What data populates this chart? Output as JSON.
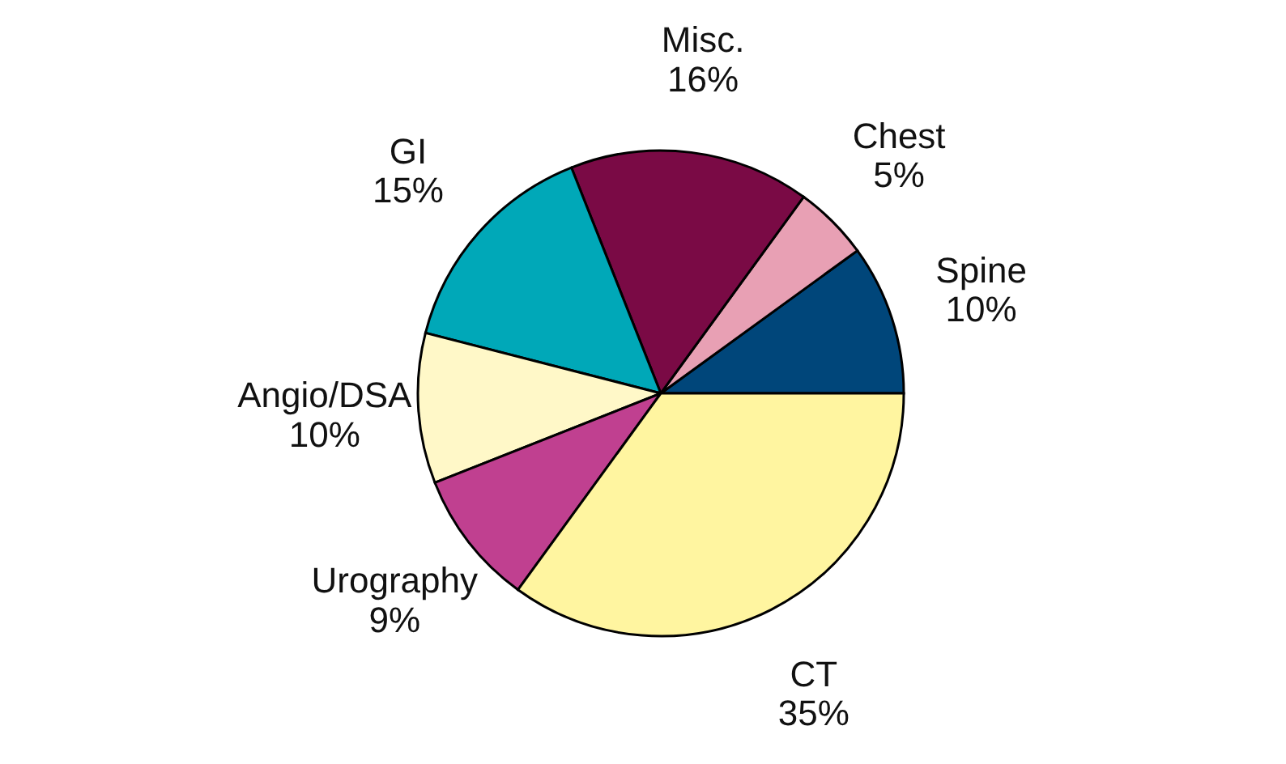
{
  "chart_data": {
    "type": "pie",
    "categories": [
      "Spine",
      "Chest",
      "Misc.",
      "GI",
      "Angio/DSA",
      "Urography",
      "CT"
    ],
    "values": [
      10,
      5,
      16,
      15,
      10,
      9,
      35
    ],
    "value_labels": [
      "10%",
      "5%",
      "16%",
      "15%",
      "10%",
      "9%",
      "35%"
    ],
    "colors": [
      "#00467a",
      "#e8a0b4",
      "#7a0a45",
      "#00a8b8",
      "#fff8c8",
      "#c04090",
      "#fff5a0"
    ],
    "legend": false
  }
}
